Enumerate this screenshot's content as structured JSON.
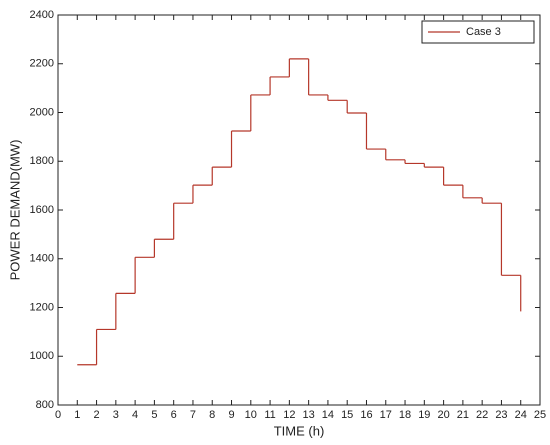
{
  "chart_data": {
    "type": "stairs",
    "xlabel": "TIME (h)",
    "ylabel": "POWER DEMAND(MW)",
    "x": [
      1,
      2,
      3,
      4,
      5,
      6,
      7,
      8,
      9,
      10,
      11,
      12,
      13,
      14,
      15,
      16,
      17,
      18,
      19,
      20,
      21,
      22,
      23,
      24
    ],
    "series": [
      {
        "name": "Case 3",
        "color": "#b5372a",
        "values": [
          965,
          1110,
          1258,
          1406,
          1480,
          1628,
          1702,
          1776,
          1924,
          2072,
          2146,
          2220,
          2072,
          2050,
          1998,
          1850,
          1806,
          1791,
          1776,
          1702,
          1650,
          1628,
          1332,
          1184
        ]
      }
    ],
    "xlim": [
      0,
      25
    ],
    "xticks": [
      0,
      1,
      2,
      3,
      4,
      5,
      6,
      7,
      8,
      9,
      10,
      11,
      12,
      13,
      14,
      15,
      16,
      17,
      18,
      19,
      20,
      21,
      22,
      23,
      24,
      25
    ],
    "ylim": [
      800,
      2400
    ],
    "yticks": [
      800,
      1000,
      1200,
      1400,
      1600,
      1800,
      2000,
      2200,
      2400
    ],
    "grid": false,
    "legend": "top-right"
  }
}
